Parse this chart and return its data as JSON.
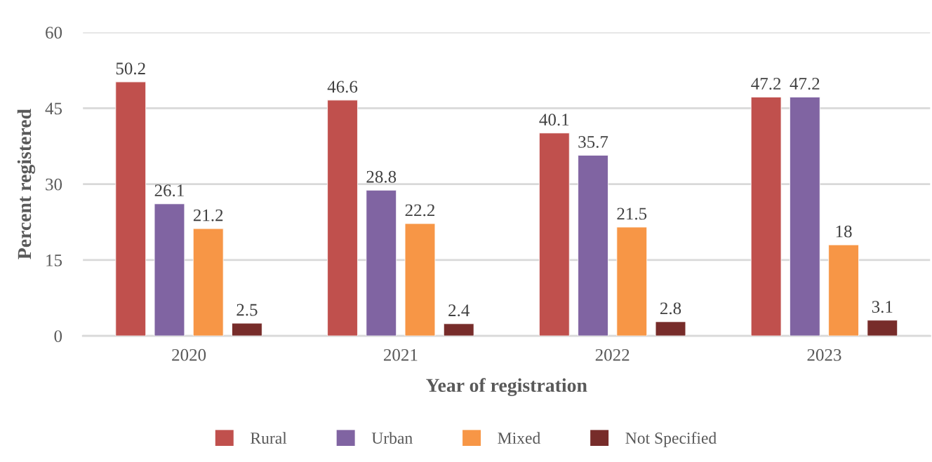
{
  "chart_data": {
    "type": "bar",
    "xlabel": "Year of registration",
    "ylabel": "Percent registered",
    "categories": [
      "2020",
      "2021",
      "2022",
      "2023"
    ],
    "series": [
      {
        "name": "Rural",
        "color": "#c0504d",
        "values": [
          50.2,
          46.6,
          40.1,
          47.2
        ]
      },
      {
        "name": "Urban",
        "color": "#8064a2",
        "values": [
          26.1,
          28.8,
          35.7,
          47.2
        ]
      },
      {
        "name": "Mixed",
        "color": "#f79646",
        "values": [
          21.2,
          22.2,
          21.5,
          18
        ]
      },
      {
        "name": "Not Specified",
        "color": "#772c2a",
        "values": [
          2.5,
          2.4,
          2.8,
          3.1
        ]
      }
    ],
    "ylim": [
      0,
      60
    ],
    "yticks": [
      0,
      15,
      30,
      45,
      60
    ],
    "grid": "y",
    "legend": "bottom",
    "data_labels": true
  }
}
